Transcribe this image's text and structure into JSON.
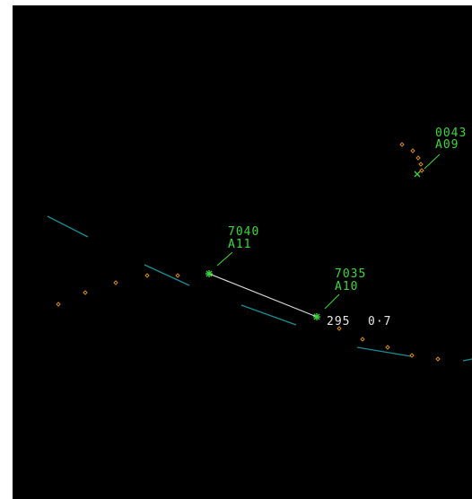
{
  "colors": {
    "background": "#000000",
    "frame": "#ffffff",
    "track_symbol": "#39d839",
    "tag_text": "#39d839",
    "history_dot": "#d68a1e",
    "map_line": "#1a8f94",
    "vector_line": "#d8d8d8",
    "readout_text": "#e6e6e6"
  },
  "targets": [
    {
      "id": "target-0043",
      "squawk": "0043",
      "label": "A09"
    },
    {
      "id": "target-7040",
      "squawk": "7040",
      "label": "A11"
    },
    {
      "id": "target-7035",
      "squawk": "7035",
      "label": "A10"
    }
  ],
  "bearing_range": {
    "bearing": "295",
    "range": "0·7"
  }
}
